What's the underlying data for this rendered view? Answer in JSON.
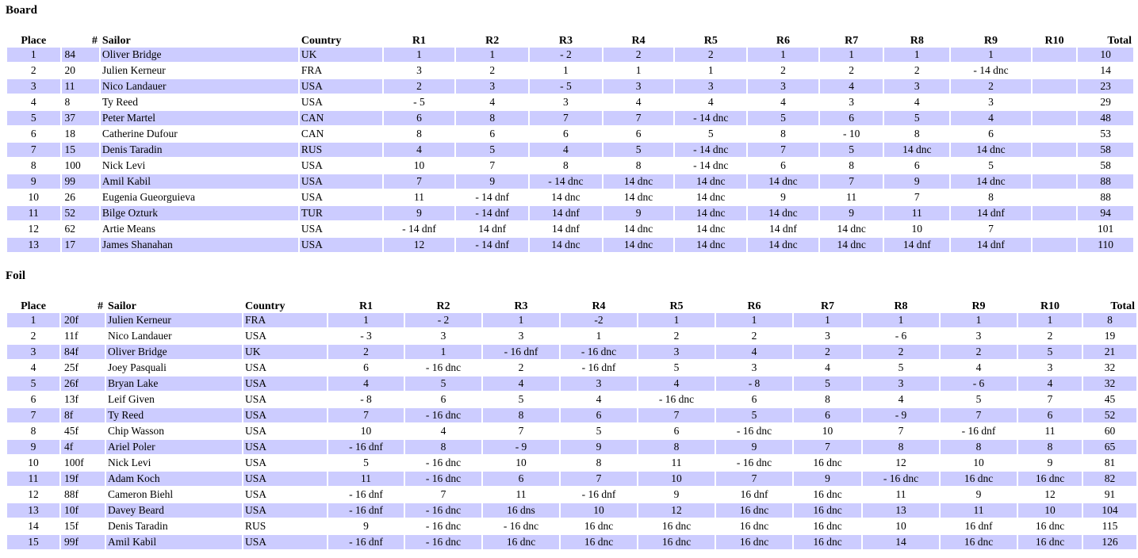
{
  "board": {
    "title": "Board",
    "headers": [
      "Place",
      "#",
      "Sailor",
      "Country",
      "R1",
      "R2",
      "R3",
      "R4",
      "R5",
      "R6",
      "R7",
      "R8",
      "R9",
      "R10",
      "Total"
    ],
    "rows": [
      [
        "1",
        "84",
        "Oliver Bridge",
        "UK",
        "1",
        "1",
        "- 2",
        "2",
        "2",
        "1",
        "1",
        "1",
        "1",
        "",
        "10"
      ],
      [
        "2",
        "20",
        "Julien Kerneur",
        "FRA",
        "3",
        "2",
        "1",
        "1",
        "1",
        "2",
        "2",
        "2",
        "- 14 dnc",
        "",
        "14"
      ],
      [
        "3",
        "11",
        "Nico Landauer",
        "USA",
        "2",
        "3",
        "- 5",
        "3",
        "3",
        "3",
        "4",
        "3",
        "2",
        "",
        "23"
      ],
      [
        "4",
        "8",
        "Ty Reed",
        "USA",
        "- 5",
        "4",
        "3",
        "4",
        "4",
        "4",
        "3",
        "4",
        "3",
        "",
        "29"
      ],
      [
        "5",
        "37",
        "Peter Martel",
        "CAN",
        "6",
        "8",
        "7",
        "7",
        "- 14 dnc",
        "5",
        "6",
        "5",
        "4",
        "",
        "48"
      ],
      [
        "6",
        "18",
        "Catherine Dufour",
        "CAN",
        "8",
        "6",
        "6",
        "6",
        "5",
        "8",
        "- 10",
        "8",
        "6",
        "",
        "53"
      ],
      [
        "7",
        "15",
        "Denis Taradin",
        "RUS",
        "4",
        "5",
        "4",
        "5",
        "- 14 dnc",
        "7",
        "5",
        "14 dnc",
        "14 dnc",
        "",
        "58"
      ],
      [
        "8",
        "100",
        "Nick Levi",
        "USA",
        "10",
        "7",
        "8",
        "8",
        "- 14 dnc",
        "6",
        "8",
        "6",
        "5",
        "",
        "58"
      ],
      [
        "9",
        "99",
        "Amil Kabil",
        "USA",
        "7",
        "9",
        "- 14 dnc",
        "14 dnc",
        "14 dnc",
        "14 dnc",
        "7",
        "9",
        "14 dnc",
        "",
        "88"
      ],
      [
        "10",
        "26",
        "Eugenia Gueorguieva",
        "USA",
        "11",
        "- 14 dnf",
        "14 dnc",
        "14 dnc",
        "14 dnc",
        "9",
        "11",
        "7",
        "8",
        "",
        "88"
      ],
      [
        "11",
        "52",
        "Bilge Ozturk",
        "TUR",
        "9",
        "- 14 dnf",
        "14 dnf",
        "9",
        "14 dnc",
        "14 dnc",
        "9",
        "11",
        "14 dnf",
        "",
        "94"
      ],
      [
        "12",
        "62",
        "Artie Means",
        "USA",
        "- 14 dnf",
        "14 dnf",
        "14 dnf",
        "14 dnc",
        "14 dnc",
        "14 dnf",
        "14 dnc",
        "10",
        "7",
        "",
        "101"
      ],
      [
        "13",
        "17",
        "James Shanahan",
        "USA",
        "12",
        "- 14 dnf",
        "14 dnc",
        "14 dnc",
        "14 dnc",
        "14 dnc",
        "14 dnc",
        "14 dnf",
        "14 dnf",
        "",
        "110"
      ]
    ]
  },
  "foil": {
    "title": "Foil",
    "headers": [
      "Place",
      "#",
      "Sailor",
      "Country",
      "R1",
      "R2",
      "R3",
      "R4",
      "R5",
      "R6",
      "R7",
      "R8",
      "R9",
      "R10",
      "Total"
    ],
    "rows": [
      [
        "1",
        "20f",
        "Julien Kerneur",
        "FRA",
        "1",
        "- 2",
        "1",
        "-2",
        "1",
        "1",
        "1",
        "1",
        "1",
        "1",
        "8"
      ],
      [
        "2",
        "11f",
        "Nico Landauer",
        "USA",
        "- 3",
        "3",
        "3",
        "1",
        "2",
        "2",
        "3",
        "- 6",
        "3",
        "2",
        "19"
      ],
      [
        "3",
        "84f",
        "Oliver Bridge",
        "UK",
        "2",
        "1",
        "- 16 dnf",
        "- 16 dnc",
        "3",
        "4",
        "2",
        "2",
        "2",
        "5",
        "21"
      ],
      [
        "4",
        "25f",
        "Joey Pasquali",
        "USA",
        "6",
        "- 16 dnc",
        "2",
        "- 16 dnf",
        "5",
        "3",
        "4",
        "5",
        "4",
        "3",
        "32"
      ],
      [
        "5",
        "26f",
        "Bryan Lake",
        "USA",
        "4",
        "5",
        "4",
        "3",
        "4",
        "- 8",
        "5",
        "3",
        "- 6",
        "4",
        "32"
      ],
      [
        "6",
        "13f",
        "Leif Given",
        "USA",
        "- 8",
        "6",
        "5",
        "4",
        "- 16 dnc",
        "6",
        "8",
        "4",
        "5",
        "7",
        "45"
      ],
      [
        "7",
        "8f",
        "Ty Reed",
        "USA",
        "7",
        "- 16 dnc",
        "8",
        "6",
        "7",
        "5",
        "6",
        "- 9",
        "7",
        "6",
        "52"
      ],
      [
        "8",
        "45f",
        "Chip Wasson",
        "USA",
        "10",
        "4",
        "7",
        "5",
        "6",
        "- 16 dnc",
        "10",
        "7",
        "- 16 dnf",
        "11",
        "60"
      ],
      [
        "9",
        "4f",
        "Ariel Poler",
        "USA",
        "- 16 dnf",
        "8",
        "- 9",
        "9",
        "8",
        "9",
        "7",
        "8",
        "8",
        "8",
        "65"
      ],
      [
        "10",
        "100f",
        "Nick Levi",
        "USA",
        "5",
        "- 16 dnc",
        "10",
        "8",
        "11",
        "- 16 dnc",
        "16 dnc",
        "12",
        "10",
        "9",
        "81"
      ],
      [
        "11",
        "19f",
        "Adam Koch",
        "USA",
        "11",
        "- 16 dnc",
        "6",
        "7",
        "10",
        "7",
        "9",
        "- 16 dnc",
        "16 dnc",
        "16 dnc",
        "82"
      ],
      [
        "12",
        "88f",
        "Cameron Biehl",
        "USA",
        "- 16 dnf",
        "7",
        "11",
        "- 16 dnf",
        "9",
        "16 dnf",
        "16 dnc",
        "11",
        "9",
        "12",
        "91"
      ],
      [
        "13",
        "10f",
        "Davey Beard",
        "USA",
        "- 16 dnf",
        "- 16 dnc",
        "16 dns",
        "10",
        "12",
        "16 dnc",
        "16 dnc",
        "13",
        "11",
        "10",
        "104"
      ],
      [
        "14",
        "15f",
        "Denis Taradin",
        "RUS",
        "9",
        "- 16 dnc",
        "- 16 dnc",
        "16 dnc",
        "16 dnc",
        "16 dnc",
        "16 dnc",
        "10",
        "16 dnf",
        "16 dnc",
        "115"
      ],
      [
        "15",
        "99f",
        "Amil Kabil",
        "USA",
        "- 16 dnf",
        "- 16 dnc",
        "16 dnc",
        "16 dnc",
        "16 dnc",
        "16 dnc",
        "16 dnc",
        "14",
        "16 dnc",
        "16 dnc",
        "126"
      ]
    ]
  }
}
